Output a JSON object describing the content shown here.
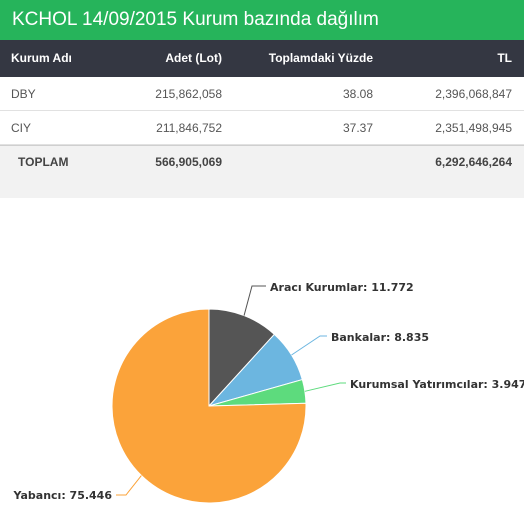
{
  "header": {
    "title": "KCHOL 14/09/2015 Kurum bazında dağılım"
  },
  "table": {
    "columns": [
      "Kurum Adı",
      "Adet (Lot)",
      "Toplamdaki Yüzde",
      "TL"
    ],
    "rows": [
      [
        "DBY",
        "215,862,058",
        "38.08",
        "2,396,068,847"
      ],
      [
        "CIY",
        "211,846,752",
        "37.37",
        "2,351,498,945"
      ]
    ],
    "total": {
      "label": "TOPLAM",
      "adet": "566,905,069",
      "pct": "",
      "tl": "6,292,646,264"
    }
  },
  "chart_data": {
    "type": "pie",
    "start_angle_deg": 0,
    "slices": [
      {
        "label": "Aracı Kurumlar: 11.772",
        "value": 11.772,
        "color": "#555555"
      },
      {
        "label": "Bankalar: 8.835",
        "value": 8.835,
        "color": "#6cb6e0"
      },
      {
        "label": "Kurumsal Yatırımcılar: 3.947",
        "value": 3.947,
        "color": "#5ddb7d"
      },
      {
        "label": "Yabancı: 75.446",
        "value": 75.446,
        "color": "#fba33a"
      }
    ]
  }
}
